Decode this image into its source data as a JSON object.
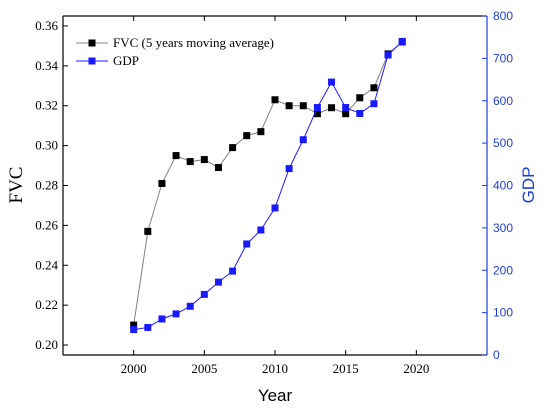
{
  "chart_data": {
    "type": "line",
    "title": "",
    "xlabel": "Year",
    "ylabel": "FVC",
    "y2label": "GDP",
    "xlim": [
      1995,
      2025
    ],
    "ylim": [
      0.195,
      0.365
    ],
    "y2lim": [
      0,
      800
    ],
    "x_ticks": [
      "2000",
      "2005",
      "2010",
      "2015",
      "2020"
    ],
    "y_ticks": [
      "0.20",
      "0.22",
      "0.24",
      "0.26",
      "0.28",
      "0.30",
      "0.32",
      "0.34",
      "0.36"
    ],
    "y2_ticks": [
      "0",
      "100",
      "200",
      "300",
      "400",
      "500",
      "600",
      "700",
      "800"
    ],
    "legend_position": "top-left",
    "x": [
      2000,
      2001,
      2002,
      2003,
      2004,
      2005,
      2006,
      2007,
      2008,
      2009,
      2010,
      2011,
      2012,
      2013,
      2014,
      2015,
      2016,
      2017,
      2018,
      2019
    ],
    "series": [
      {
        "name": "FVC (5 years moving average)",
        "axis": "left",
        "color": "#000000",
        "line_color": "#808080",
        "values": [
          0.21,
          0.257,
          0.281,
          0.295,
          0.292,
          0.293,
          0.289,
          0.299,
          0.305,
          0.307,
          0.323,
          0.32,
          0.32,
          0.316,
          0.319,
          0.316,
          0.324,
          0.329,
          0.346,
          0.352
        ]
      },
      {
        "name": "GDP",
        "axis": "right",
        "color": "#1a1aff",
        "line_color": "#1a1aff",
        "values": [
          60,
          65,
          85,
          97,
          115,
          143,
          172,
          198,
          262,
          295,
          347,
          440,
          508,
          584,
          644,
          584,
          570,
          593,
          708,
          740
        ]
      }
    ]
  }
}
